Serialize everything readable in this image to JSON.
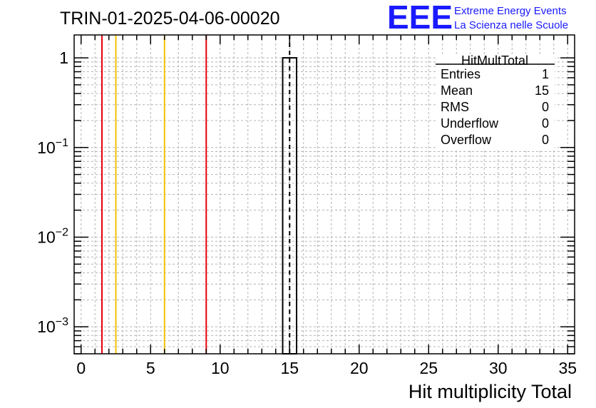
{
  "chart_data": {
    "type": "bar",
    "title": "TRIN-01-2025-04-06-00020",
    "xlabel": "Hit multiplicity Total",
    "ylabel": "",
    "xlim": [
      -0.5,
      35.5
    ],
    "ylim": [
      0.0005,
      1.8
    ],
    "yscale": "log",
    "grid": true,
    "x_ticks": [
      0,
      5,
      10,
      15,
      20,
      25,
      30,
      35
    ],
    "y_ticks": [
      {
        "value": 1,
        "base": "1",
        "exp": ""
      },
      {
        "value": 0.1,
        "base": "10",
        "exp": "−1"
      },
      {
        "value": 0.01,
        "base": "10",
        "exp": "−2"
      },
      {
        "value": 0.001,
        "base": "10",
        "exp": "−3"
      }
    ],
    "bins": [
      {
        "x_low": 14.5,
        "x_high": 15.5,
        "value": 1
      }
    ],
    "mean_line": 15,
    "vertical_lines": [
      {
        "x": 1.5,
        "color": "#e8000b"
      },
      {
        "x": 2.5,
        "color": "#f2c200"
      },
      {
        "x": 6.0,
        "color": "#f2c200"
      },
      {
        "x": 9.0,
        "color": "#e8000b"
      }
    ],
    "stats_box": {
      "title": "HitMultTotal",
      "rows": [
        {
          "label": "Entries",
          "value": "1"
        },
        {
          "label": "Mean",
          "value": "15"
        },
        {
          "label": "RMS",
          "value": "0"
        },
        {
          "label": "Underflow",
          "value": "0"
        },
        {
          "label": "Overflow",
          "value": "0"
        }
      ]
    }
  },
  "logo": {
    "mark": "EEE",
    "line1": "Extreme Energy Events",
    "line2": "La Scienza nelle Scuole"
  }
}
